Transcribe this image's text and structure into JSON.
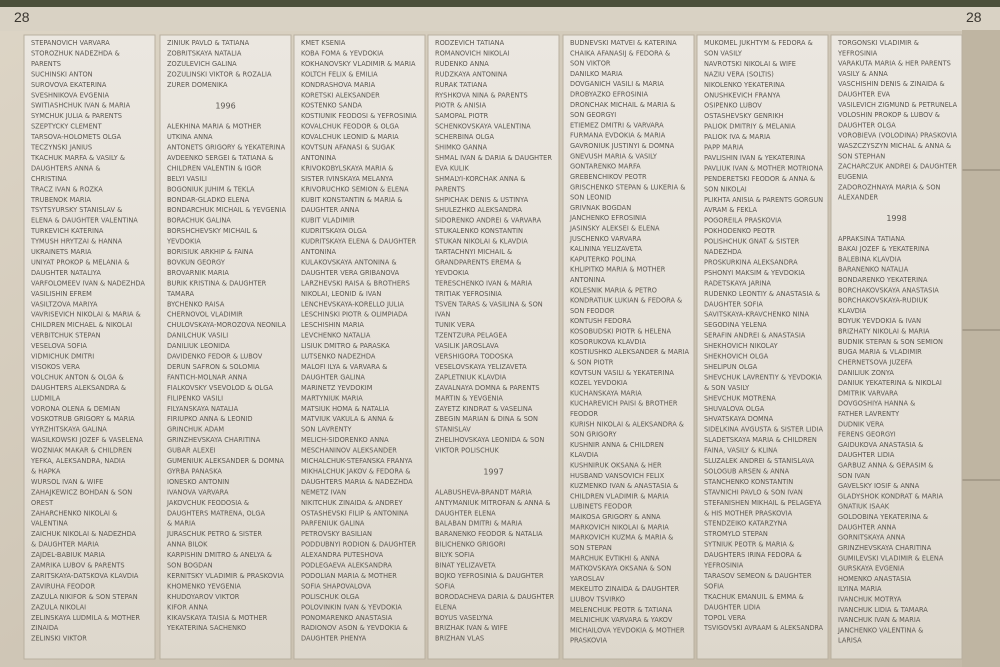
{
  "header": {
    "left_number": "28",
    "right_number": "28"
  },
  "panels": [
    {
      "sections": [
        {
          "names": [
            "STEPANOVICH VARVARA",
            "STOROZHUK NADEZHDA &",
            "PARENTS",
            "SUCHINSKI ANTON",
            "SUROVOVA EKATERINA",
            "SVESHNIKOVA EVGENIA",
            "SWITIASHCHUK IVAN & MARIA",
            "SYMCHUK JULIA & PARENTS",
            "SZEPTYCKY CLEMENT",
            "TARSOVA-HOLOMETS OLGA",
            "TECZYNSKI JANIUS",
            "TKACHUK MARFA & VASILY &",
            "DAUGHTERS ANNA &",
            "CHRISTINA",
            "TRACZ IVAN & ROZKA",
            "TRUBENOK MARIA",
            "TSYTSYURSKY STANISLAV &",
            "ELENA & DAUGHTER VALENTINA",
            "TURKEVICH KATERINA",
            "TYMUSH HRYTZAI & HANNA",
            "UKRAINETS MARIA",
            "UNIYAT PROKOP & MELANIA &",
            "DAUGHTER NATALIYA",
            "VARFOLOMEEV IVAN & NADEZHDA",
            "VASILISHIN EFREM",
            "VASILTZOVA MARIYA",
            "VAVRISEVICH NIKOLAI & MARIA &",
            "CHILDREN MICHAEL & NIKOLAI",
            "VERBITCHUK STEPAN",
            "VESELOVA SOFIA",
            "VIDMICHUK DMITRI",
            "VISOKOS VERA",
            "VOLCHUK ANTON & OLGA &",
            "DAUGHTERS ALEKSANDRA &",
            "LUDMILA",
            "VORONA OLENA & DEMIAN",
            "VOSKOTRUB GRIGORY & MARIA",
            "VYRZHITSKAYA GALINA",
            "WASILKOWSKI JOZEF & VASELENA",
            "WOZNIAK MAKAR & CHILDREN",
            "YEFKA, ALEKSANDRA, NADIA",
            "& HAPKA",
            "WURSOL IVAN & WIFE",
            "ZAHAJKEWICZ BOHDAN & SON",
            "OREST",
            "ZAHARCHENKO NIKOLAI &",
            "VALENTINA",
            "ZAICHUK NIKOLAI & NADEZHDA",
            "& DAUGHTER MARIA",
            "ZAJDEL-BABIUK MARIA",
            "ZAMRIKA LUBOV & PARENTS",
            "ZARITSKAYA-DATSKOVA KLAVDIA",
            "ZAVIRUHA FEODOR",
            "ZAZULA NIKIFOR & SON STEPAN",
            "ZAZULA NIKOLAI",
            "ZELINSKAYA LUDMILA & MOTHER",
            "ZINAIDA",
            "ZELINSKI VIKTOR"
          ]
        }
      ]
    },
    {
      "sections": [
        {
          "names": [
            "ZINIUK PAVLO & TATIANA",
            "ZOBRITSKAYA NATALIA",
            "ZOZULEVICH GALINA",
            "ZOZULINSKI VIKTOR & ROZALIA",
            "ZURER DOMENIKA"
          ]
        },
        {
          "year": "1996",
          "names": [
            "ALEKHINA MARIA & MOTHER",
            "UTKINA ANNA",
            "ANTONETS GRIGORY & YEKATERINA",
            "AVDEENKO SERGEI & TATIANA &",
            "CHILDREN VALENTIN & IGOR",
            "BELYI VASILI",
            "BOGONIUK JUHIM & TEKLA",
            "BONDAR-GLADKO ELENA",
            "BONDARCHUK MICHAIL & YEVGENIA",
            "BORACHUK GALINA",
            "BORSHCHEVSKY MICHAIL &",
            "YEVDOKIA",
            "BORISIUK ARKHIP & FAINA",
            "BOVKUN GEORGY",
            "BROVARNIK MARIA",
            "BURIK KRISTINA & DAUGHTER",
            "TAMARA",
            "BYCHENKO RAISA",
            "CHERNOVOL VLADIMIR",
            "CHULOVSKAYA-MOROZOVA NEONILA",
            "DANILCHUK VASILI",
            "DANILIUK LEONIDA",
            "DAVIDENKO FEDOR & LUBOV",
            "DERUN SAFRON & SOLOMIA",
            "FANTICH-MOLNAR ANNA",
            "FIALKOVSKY VSEVOLOD & OLGA",
            "FILIPENKO VASILI",
            "FILYANSKAYA NATALIA",
            "FIRIUPKO ANNA & LEONID",
            "GRINCHUK ADAM",
            "GRINZHEVSKAYA CHARITINA",
            "GUBAR ALEXEI",
            "GUMENIUK ALEKSANDER & DOMNA",
            "GYRBA PANASKA",
            "IONESKO ANTONIN",
            "IVANOVA VARVARA",
            "JAKOVCHUK FEODOSIA &",
            "DAUGHTERS MATRENA, OLGA",
            "& MARIA",
            "JURASCHUK PETRO & SISTER",
            "ANNA BILOK",
            "KARPISHIN DMITRO & ANELYA &",
            "SON BOGDAN",
            "KERNITSKY VLADIMIR & PRASKOVIA",
            "KHOMENKO YEVGENIA",
            "KHUDOYAROV VIKTOR",
            "KIFOR ANNA",
            "KIKAVSKAYA TAISIA & MOTHER",
            "YEKATERINA SACHENKO"
          ]
        }
      ]
    },
    {
      "sections": [
        {
          "names": [
            "KMET KSENIA",
            "KOBA FOMA & YEVDOKIA",
            "KOKHANOVSKY VLADIMIR & MARIA",
            "KOLTCH FELIX & EMILIA",
            "KONDRASHOVA MARIA",
            "KORETSKI ALEKSANDER",
            "KOSTENKO SANDA",
            "KOSTIUNIK FEODOSI & YEFROSINIA",
            "KOVALCHUK FEODOR & OLGA",
            "KOVALCHUK LEONID & MARIA",
            "KOVTSUN AFANASI & SUGAK",
            "ANTONINA",
            "KRIVOKOBYLSKAYA MARIA &",
            "SISTER IVINSKAYA MELANYA",
            "KRIVORUCHKO SEMION & ELENA",
            "KUBIT KONSTANTIN & MARIA &",
            "DAUGHTER ANNA",
            "KUBIT VLADIMIR",
            "KUDRITSKAYA OLGA",
            "KUDRITSKAYA ELENA & DAUGHTER",
            "ANTONINA",
            "KULAKOVSKAYA ANTONINA &",
            "DAUGHTER VERA GRIBANOVA",
            "LARZHEVSKI RAISA & BROTHERS",
            "NIKOLAI, LEONID & IVAN",
            "LENCHEVSKAYA-KORELLO JULIA",
            "LESCHINSKI PIOTR & OLIMPIADA",
            "LESCHISHIN MARIA",
            "LEVCHENKO NATALIA",
            "LISIUK DMITRO & PARASKA",
            "LUTSENKO NADEZHDA",
            "MALOFI ILYA & VARVARA &",
            "DAUGHTER GALINA",
            "MARINETZ YEVDOKIM",
            "MARTYNIUK MARIA",
            "MATSIUK HOMA & NATALIA",
            "MATVIUK VAKULA & ANNA &",
            "SON LAVRENTY",
            "MELICH-SIDORENKO ANNA",
            "MESCHANINOV ALEKSANDER",
            "MICHALCHUK-STEFANSKA FRANYA",
            "MIKHALCHUK JAKOV & FEDORA &",
            "DAUGHTERS MARIA & NADEZHDA",
            "NEMETZ IVAN",
            "NIKITCHUK ZINAIDA & ANDREY",
            "OSTASHEVSKI FILIP & ANTONINA",
            "PARFENIUK GALINA",
            "PETROVSKY BASILIAN",
            "PODDUBNYI RODION & DAUGHTER",
            "ALEXANDRA PUTESHOVA",
            "PODLEGAEVA ALEKSANDRA",
            "PODOLIAN MARIA & MOTHER",
            "SOFIA SHAPOVALOVA",
            "POLISCHUK OLGA",
            "POLOVINKIN IVAN & YEVDOKIA",
            "PONOMARENKO ANASTASIA",
            "RADIONOV ASON & YEVDOKIA &",
            "DAUGHTER PHENYA"
          ]
        }
      ]
    },
    {
      "sections": [
        {
          "names": [
            "RODZEVICH TATIANA",
            "ROMANOVICH NIKOLAI",
            "RUDENKO ANNA",
            "RUDZKAYA ANTONINA",
            "RURAK TATIANA",
            "RYSHKOVA NINA & PARENTS",
            "PIOTR & ANISIA",
            "SAMOPAL PIOTR",
            "SCHENKOVSKAYA VALENTINA",
            "SCHERBINA OLGA",
            "SHIMKO GANNA",
            "SHMAL IVAN & DARIA & DAUGHTER",
            "EVA KULIK",
            "SHMALYI-KORCHAK ANNA &",
            "PARENTS",
            "SHPICHAK DENIS & USTINYA",
            "SHULEZHKO ALEKSANDRA",
            "SIDORENKO ANDREI & VARVARA",
            "STUKALENKO KONSTANTIN",
            "STUKAN NIKOLAI & KLAVDIA",
            "TARTACHNYI MICHAIL &",
            "GRANDPARENTS EREMA &",
            "YEVDOKIA",
            "TERESCHENKO IVAN & MARIA",
            "TRITIAK YEFROSINIA",
            "TSVEN TARAS & VASILINA & SON",
            "IVAN",
            "TUNIK VERA",
            "TZENTZURA PELAGEA",
            "VASILIK JAROSLAVA",
            "VERSHIGORA TODOSKA",
            "VESELOVSKAYA YELIZAVETA",
            "ZAPLETNIUK KLAVDIA",
            "ZAVALNAYA DOMNA & PARENTS",
            "MARTIN & YEVGENIA",
            "ZAYETZ KINDRAT & VASELINA",
            "ZBEGIN MARIAN & DINA & SON",
            "STANISLAV",
            "ZHELIHOVSKAYA LEONIDA & SON",
            "VIKTOR POLISCHUK"
          ]
        },
        {
          "year": "1997",
          "names": [
            "ALABUSHEVA-BRANDT MARIA",
            "ANTYMANIUK MITROFAN & ANNA &",
            "DAUGHTER ELENA",
            "BALABAN DMITRI & MARIA",
            "BARANENKO FEODOR & NATALIA",
            "BILICHENKO GRIGORI",
            "BILYK SOFIA",
            "BINAT YELIZAVETA",
            "BOJKO YEFROSINIA & DAUGHTER",
            "SOFIA",
            "BORODACHEVA DARIA & DAUGHTER",
            "ELENA",
            "BOYUS VASELYNA",
            "BRIZHAK IVAN & WIFE",
            "BRIZHAN VLAS"
          ]
        }
      ]
    },
    {
      "sections": [
        {
          "names": [
            "BUDNEVSKI MATVEI & KATERINA",
            "CHAIKA AFANASIJ & FEDORA &",
            "SON VIKTOR",
            "DANILKO MARIA",
            "DOVGANICH VASILI & MARIA",
            "DROBYAZKO EFROSINIA",
            "DRONCHAK MICHAIL & MARIA &",
            "SON GEORGYI",
            "ETIEMEZ DMITRI & VARVARA",
            "FURMANA EVDOKIA & MARIA",
            "GAVRONIUK JUSTINYI & DOMNA",
            "GNEVUSH MARIA & VASILY",
            "GONTARENKO MARFA",
            "GREBENCHIKOV PEOTR",
            "GRISCHENKO STEPAN & LUKERIA &",
            "SON LEONID",
            "GRIVNAK BOGDAN",
            "JANCHENKO EFROSINIA",
            "JASINSKY ALEKSEI & ELENA",
            "JUSCHENKO VARVARA",
            "KALININA YELIZAVETA",
            "KAPUTERKO POLINA",
            "KHLIPITKO MARIA & MOTHER",
            "ANTONINA",
            "KOLESNIK MARIA & PETRO",
            "KONDRATIUK LUKIAN & FEDORA &",
            "SON FEODOR",
            "KONTUSH FEDORA",
            "KOSOBUDSKI PIOTR & HELENA",
            "KOSORUKOVA KLAVDIA",
            "KOSTIUSHKO ALEKSANDER & MARIA",
            "& SON PIOTR",
            "KOVTSUN VASILI & YEKATERINA",
            "KOZEL YEVDOKIA",
            "KUCHANSKAYA MARIA",
            "KUCHAREVICH PAISI & BROTHER",
            "FEODOR",
            "KURISH NIKOLAI & ALEKSANDRA &",
            "SON GRIGORY",
            "KUSHNIR ANNA & CHILDREN",
            "KLAVDIA",
            "KUSHNIRUK OKSANA & HER",
            "HUSBAND VANSOVICH FELIX",
            "KUZMENKO IVAN & ANASTASIA &",
            "CHILDREN VLADIMIR & MARIA",
            "LUBINETS FEODOR",
            "MAIKOSA GRIGORY & ANNA",
            "MARKOVICH NIKOLAI & MARIA",
            "MARKOVICH KUZMA & MARIA &",
            "SON STEPAN",
            "MARCHUK EVTIKHI & ANNA",
            "MATKOVSKAYA OKSANA & SON",
            "YAROSLAV",
            "MEKELITO ZINAIDA & DAUGHTER",
            "LIUBOV TSVIRKO",
            "MELENCHUK PEOTR & TATIANA",
            "MELNICHUK VARVARA & YAKOV",
            "MICHAILOVA YEVDOKIA & MOTHER",
            "PRASKOVIA"
          ]
        }
      ]
    },
    {
      "sections": [
        {
          "names": [
            "MUKOMEL JUKHTYM & FEDORA &",
            "SON VASILY",
            "NAVROTSKI NIKOLAI & WIFE",
            "NAZIU VERA (SOLTIS)",
            "NIKOLENKO YEKATERINA",
            "ONUSHKEVICH FRANYA",
            "OSIPENKO LUBOV",
            "OSTASHEVSKY GENRIKH",
            "PALIOK DMITRIY & MELANIA",
            "PALIOK IVA & MARIA",
            "PAPP MARIA",
            "PAVLISHIN IVAN & YEKATERINA",
            "PAVLIUK IVAN & MOTHER MOTRIONA",
            "PENDERETSKI FEODOR & ANNA &",
            "SON NIKOLAI",
            "PLIKHTA ANISIA & PARENTS GORGUN",
            "AVRAM & FEKLA",
            "POGOREILA PRASKOVIA",
            "POKHODENKO PEOTR",
            "POLISHCHUK GNAT & SISTER",
            "NADEZHDA",
            "PROSKURKINA ALEKSANDRA",
            "PSHONYI MAKSIM & YEVDOKIA",
            "RADETSKAYA JARINA",
            "RUDENKO LEONTIY & ANASTASIA &",
            "DAUGHTER SOFIA",
            "SAVITSKAYA-KRAVCHENKO NINA",
            "SEGODINA YELENA",
            "SERAFIN ANDREI & ANASTASIA",
            "SHEKHOVICH NIKOLAY",
            "SHEKHOVICH OLGA",
            "SHELIPUN OLGA",
            "SHEVCHUK LAVRENTIY & YEVDOKIA",
            "& SON VASILY",
            "SHEVCHUK MOTRENA",
            "SHUVALOVA OLGA",
            "SHVATSKAYA DOMNA",
            "SIDELKINA AVGUSTA & SISTER LIDIA",
            "SLADETSKAYA MARIA & CHILDREN",
            "FAINA, VASILY & KLINA",
            "SLUZALEK ANDREI & STANISLAVA",
            "SOLOGUB ARSEN & ANNA",
            "STANCHENKO KONSTANTIN",
            "STAVNICHI PAVLO & SON IVAN",
            "STEFANISHEN MIKHAIL & PELAGEYA",
            "& HIS MOTHER PRASKOVIA",
            "STENDZEIKO KATARZYNA",
            "STROMYLO STEPAN",
            "SYTNIUK PEOTR & MARIA &",
            "DAUGHTERS IRINA FEDORA &",
            "YEFROSINIA",
            "TARASOV SEMEON & DAUGHTER",
            "SOFIA",
            "TKACHUK EMANUIL & EMMA &",
            "DAUGHTER LIDIA",
            "TOPOL VERA",
            "TSVIGOVSKI AVRAAM & ALEKSANDRA"
          ]
        }
      ]
    },
    {
      "sections": [
        {
          "names": [
            "TORGONSKI VLADIMIR &",
            "YEFROSINIA",
            "VARAKUTA MARIA & HER PARENTS",
            "VASILY & ANNA",
            "VASCHISHIN DENIS & ZINAIDA &",
            "DAUGHTER EVA",
            "VASILEVICH ZIGMUND & PETRUNELA",
            "VOLOSHIN PROKOP & LUBOV &",
            "DAUGHTER OLGA",
            "VOROBIEVA (VOLODINA) PRASKOVIA",
            "WASZCZYSZYN MICHAL & ANNA &",
            "SON STEPHAN",
            "ZACHARCZUK ANDREI & DAUGHTER",
            "EUGENIA",
            "ZADOROZHNAYA MARIA & SON",
            "ALEXANDER"
          ]
        },
        {
          "year": "1998",
          "names": [
            "APRAKSINA TATIANA",
            "BAKAI JOZEF & YEKATERINA",
            "BALEBINA KLAVDIA",
            "BARANENKO NATALIA",
            "BONDARENKO YEKATERINA",
            "BORCHAKOVSKAYA ANASTASIA",
            "BORCHAKOVSKAYA-RUDIUK",
            "KLAVDIA",
            "BOYUK YEVDOKIA & IVAN",
            "BRIZHATY NIKOLAI & MARIA",
            "BUDNIK STEPAN & SON SEMION",
            "BUGA MARIA & VLADIMIR",
            "CHERNETSOVA JUZEFA",
            "DANILIUK ZONYA",
            "DANIUK YEKATERINA & NIKOLAI",
            "DMITRIK VARVARA",
            "DOVGOSHIYA HANNA &",
            "FATHER LAVRENTY",
            "DUDNIK VERA",
            "FERENS GEORGYI",
            "GAIDUKOVA ANASTASIA &",
            "DAUGHTER LIDIA",
            "GARBUZ ANNA & GERASIM &",
            "SON IVAN",
            "GAVELSKY IOSIF & ANNA",
            "GLADYSHOK KONDRAT & MARIA",
            "GNATIUK ISAAK",
            "GOLDOBINA YEKATERINA &",
            "DAUGHTER ANNA",
            "GORNITSKAYA ANNA",
            "GRINZHEVSKAYA CHARITINA",
            "GUMILEVSKI VLADIMIR & ELENA",
            "GURSKAYA EVGENIA",
            "HOMENKO ANASTASIA",
            "ILYINA MARIA",
            "IVANCHUK MOTRYA",
            "IVANCHUK LIDIA & TAMARA",
            "IVANCHUK IVAN & MARIA",
            "JANCHENKO VALENTINA &",
            "LARISA"
          ]
        }
      ]
    }
  ]
}
